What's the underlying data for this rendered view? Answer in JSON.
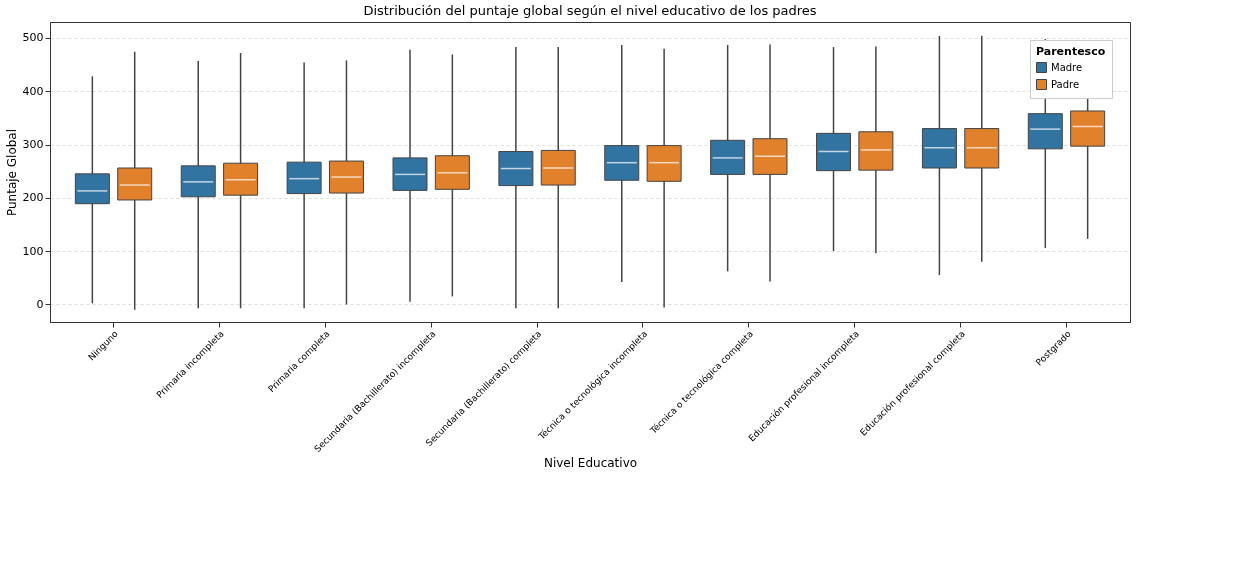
{
  "chart_data": {
    "type": "box",
    "title": "Distribución del puntaje global según el nivel educativo de los padres",
    "xlabel": "Nivel Educativo",
    "ylabel": "Puntaje Global",
    "legend_title": "Parentesco",
    "legend": "top right",
    "grid": "y",
    "categories": [
      "Ninguno",
      "Primaria incompleta",
      "Primaria completa",
      "Secundaria (Bachillerato) incompleta",
      "Secundaria (Bachillerato) completa",
      "Técnica o tecnológica incompleta",
      "Técnica o tecnológica completa",
      "Educación profesional incompleta",
      "Educación profesional completa",
      "Postgrado"
    ],
    "ylim": [
      -33,
      530
    ],
    "yticks": [
      0,
      100,
      200,
      300,
      400,
      500
    ],
    "series": [
      {
        "name": "Madre",
        "color": "#3274a1",
        "boxes": [
          {
            "low": 2,
            "q1": 189,
            "median": 213,
            "q3": 245,
            "high": 428
          },
          {
            "low": -7,
            "q1": 202,
            "median": 230,
            "q3": 260,
            "high": 457
          },
          {
            "low": -7,
            "q1": 208,
            "median": 236,
            "q3": 267,
            "high": 454
          },
          {
            "low": 5,
            "q1": 214,
            "median": 244,
            "q3": 275,
            "high": 478
          },
          {
            "low": -7,
            "q1": 223,
            "median": 255,
            "q3": 287,
            "high": 483
          },
          {
            "low": 42,
            "q1": 233,
            "median": 266,
            "q3": 298,
            "high": 487
          },
          {
            "low": 62,
            "q1": 244,
            "median": 275,
            "q3": 308,
            "high": 487
          },
          {
            "low": 100,
            "q1": 251,
            "median": 287,
            "q3": 321,
            "high": 483
          },
          {
            "low": 55,
            "q1": 256,
            "median": 294,
            "q3": 330,
            "high": 504
          },
          {
            "low": 106,
            "q1": 292,
            "median": 329,
            "q3": 358,
            "high": 498
          }
        ]
      },
      {
        "name": "Padre",
        "color": "#e1812c",
        "boxes": [
          {
            "low": -10,
            "q1": 196,
            "median": 224,
            "q3": 256,
            "high": 474
          },
          {
            "low": -7,
            "q1": 205,
            "median": 234,
            "q3": 265,
            "high": 472
          },
          {
            "low": 0,
            "q1": 209,
            "median": 239,
            "q3": 269,
            "high": 458
          },
          {
            "low": 15,
            "q1": 216,
            "median": 247,
            "q3": 279,
            "high": 469
          },
          {
            "low": -7,
            "q1": 224,
            "median": 256,
            "q3": 289,
            "high": 483
          },
          {
            "low": -6,
            "q1": 231,
            "median": 266,
            "q3": 298,
            "high": 480
          },
          {
            "low": 43,
            "q1": 244,
            "median": 278,
            "q3": 311,
            "high": 488
          },
          {
            "low": 96,
            "q1": 252,
            "median": 290,
            "q3": 324,
            "high": 484
          },
          {
            "low": 80,
            "q1": 256,
            "median": 294,
            "q3": 330,
            "high": 504
          },
          {
            "low": 123,
            "q1": 297,
            "median": 334,
            "q3": 363,
            "high": 490
          }
        ]
      }
    ]
  }
}
